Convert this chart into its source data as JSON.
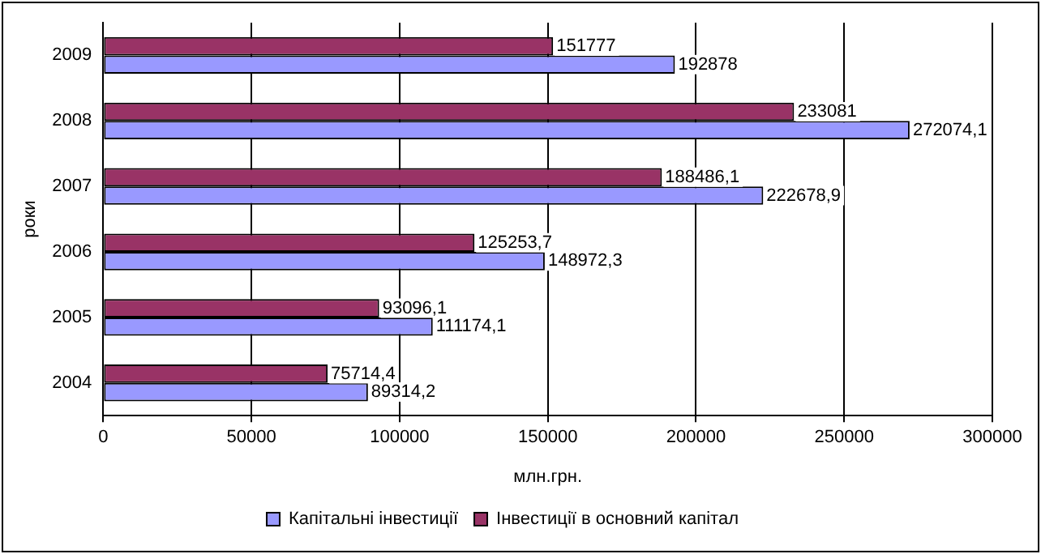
{
  "chart_data": {
    "type": "bar",
    "orientation": "horizontal",
    "xlabel": "млн.грн.",
    "ylabel": "роки",
    "categories": [
      "2009",
      "2008",
      "2007",
      "2006",
      "2005",
      "2004"
    ],
    "series": [
      {
        "name": "Капітальні інвестиції",
        "color": "#9999ff",
        "values": [
          192878,
          272074.1,
          222678.9,
          148972.3,
          111174.1,
          89314.2
        ],
        "value_labels": [
          "192878",
          "272074,1",
          "222678,9",
          "148972,3",
          "111174,1",
          "89314,2"
        ]
      },
      {
        "name": "Інвестиції в основний капітал",
        "color": "#993366",
        "values": [
          151777,
          233081,
          188486.1,
          125253.7,
          93096.1,
          75714.4
        ],
        "value_labels": [
          "151777",
          "233081",
          "188486,1",
          "125253,7",
          "93096,1",
          "75714,4"
        ]
      }
    ],
    "xlim": [
      0,
      300000
    ],
    "xticks": [
      0,
      50000,
      100000,
      150000,
      200000,
      250000,
      300000
    ],
    "grid": "x",
    "legend": "bottom"
  }
}
